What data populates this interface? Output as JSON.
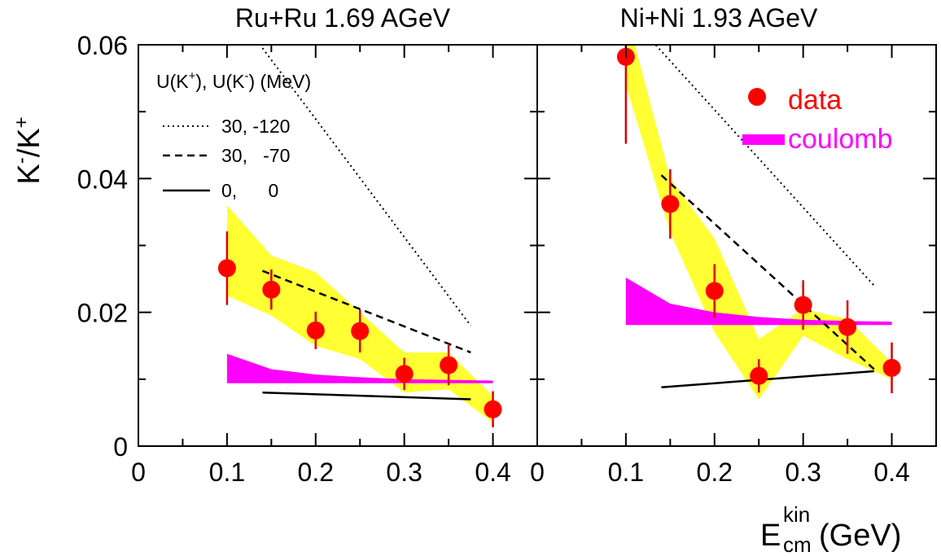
{
  "colors": {
    "band": "#ffff33",
    "coulomb": "#ff00ff",
    "data_marker": "#ff0000",
    "error_bar": "#dd0000",
    "data_label": "#ff0000",
    "coulomb_label": "#ff00ff",
    "axis": "#000000"
  },
  "axes": {
    "ylabel_main": "K",
    "ylabel_sup1": "-",
    "ylabel_slash": "/K",
    "ylabel_sup2": "+",
    "xlabel_main": "E",
    "xlabel_sub": "cm",
    "xlabel_sup": "kin",
    "xlabel_unit": "(GeV)",
    "yticks": [
      "0",
      "0.02",
      "0.04",
      "0.06"
    ],
    "xticks_left": [
      "0",
      "0.1",
      "0.2",
      "0.3",
      "0.4"
    ],
    "xticks_right": [
      "0",
      "0.1",
      "0.2",
      "0.3",
      "0.4"
    ]
  },
  "legend_potential": {
    "header_u": "U(K",
    "header_sup1": "+",
    "header_mid": "), U(K",
    "header_sup2": "-",
    "header_end": ") (MeV)",
    "entries": [
      {
        "style": "dotted",
        "label": "30, -120"
      },
      {
        "style": "dashed",
        "label": "30,   -70"
      },
      {
        "style": "solid",
        "label": "0,      0"
      }
    ]
  },
  "legend_data": {
    "data_label": "data",
    "coulomb_label": "coulomb"
  },
  "chart_data": [
    {
      "type": "scatter",
      "title": "Ru+Ru 1.69 AGeV",
      "xlim": [
        0,
        0.45
      ],
      "ylim": [
        0,
        0.06
      ],
      "grid": false,
      "data": {
        "x": [
          0.1,
          0.15,
          0.2,
          0.25,
          0.3,
          0.35,
          0.4
        ],
        "y": [
          0.0266,
          0.0234,
          0.0173,
          0.0172,
          0.0108,
          0.0121,
          0.0055
        ],
        "yerr": [
          0.0055,
          0.003,
          0.0028,
          0.0032,
          0.0024,
          0.003,
          0.0027
        ]
      },
      "band": {
        "x": [
          0.1,
          0.15,
          0.2,
          0.25,
          0.3,
          0.35,
          0.4
        ],
        "upper": [
          0.036,
          0.0285,
          0.026,
          0.02,
          0.014,
          0.014,
          0.0075
        ],
        "lower": [
          0.0225,
          0.0195,
          0.015,
          0.013,
          0.008,
          0.0085,
          0.0035
        ]
      },
      "coulomb": {
        "x": [
          0.1,
          0.15,
          0.2,
          0.25,
          0.3,
          0.35,
          0.4
        ],
        "upper": [
          0.0138,
          0.0115,
          0.0107,
          0.0103,
          0.01,
          0.0099,
          0.0098
        ],
        "lower": [
          0.0094,
          0.0094,
          0.0094,
          0.0094,
          0.0094,
          0.0094,
          0.0094
        ]
      },
      "lines": [
        {
          "style": "dotted",
          "x": [
            0.14,
            0.375
          ],
          "y": [
            0.0595,
            0.018
          ]
        },
        {
          "style": "dashed",
          "x": [
            0.14,
            0.375
          ],
          "y": [
            0.0262,
            0.014
          ]
        },
        {
          "style": "solid",
          "x": [
            0.14,
            0.375
          ],
          "y": [
            0.008,
            0.007
          ]
        }
      ]
    },
    {
      "type": "scatter",
      "title": "Ni+Ni 1.93 AGeV",
      "xlim": [
        0,
        0.45
      ],
      "ylim": [
        0,
        0.06
      ],
      "grid": false,
      "data": {
        "x": [
          0.1,
          0.15,
          0.2,
          0.25,
          0.3,
          0.35,
          0.4
        ],
        "y": [
          0.0582,
          0.0362,
          0.0232,
          0.0105,
          0.0211,
          0.0178,
          0.0117
        ],
        "yerr": [
          0.013,
          0.0052,
          0.004,
          0.0025,
          0.0037,
          0.004,
          0.0038
        ]
      },
      "band": {
        "x": [
          0.1,
          0.15,
          0.2,
          0.25,
          0.3,
          0.35,
          0.4
        ],
        "upper": [
          0.065,
          0.04,
          0.031,
          0.016,
          0.0205,
          0.019,
          0.0125
        ],
        "lower": [
          0.054,
          0.032,
          0.017,
          0.007,
          0.0165,
          0.013,
          0.01
        ]
      },
      "coulomb": {
        "x": [
          0.1,
          0.15,
          0.2,
          0.25,
          0.3,
          0.35,
          0.4
        ],
        "upper": [
          0.0252,
          0.0213,
          0.02,
          0.0193,
          0.0189,
          0.0187,
          0.0186
        ],
        "lower": [
          0.0181,
          0.0181,
          0.0181,
          0.0181,
          0.0181,
          0.0181,
          0.0181
        ]
      },
      "lines": [
        {
          "style": "dotted",
          "x": [
            0.13,
            0.38
          ],
          "y": [
            0.0605,
            0.024
          ]
        },
        {
          "style": "dashed",
          "x": [
            0.14,
            0.38
          ],
          "y": [
            0.0405,
            0.0115
          ]
        },
        {
          "style": "solid",
          "x": [
            0.14,
            0.38
          ],
          "y": [
            0.0088,
            0.0112
          ]
        }
      ]
    }
  ]
}
